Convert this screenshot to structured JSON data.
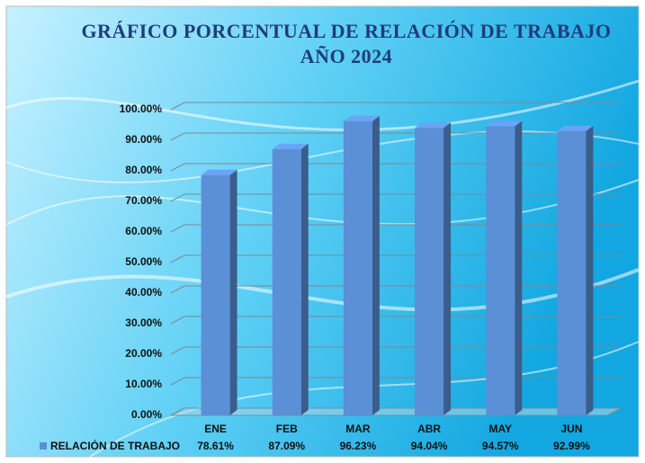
{
  "chart_data": {
    "type": "bar3d",
    "title": "GRÁFICO PORCENTUAL DE RELACIÓN DE TRABAJO",
    "subtitle": "AÑO 2024",
    "categories": [
      "ENE",
      "FEB",
      "MAR",
      "ABR",
      "MAY",
      "JUN"
    ],
    "series": [
      {
        "name": "RELACIÓN DE TRABAJO",
        "color": "#5b8fd6",
        "values": [
          78.61,
          87.09,
          96.23,
          94.04,
          94.57,
          92.99
        ],
        "value_labels": [
          "78.61%",
          "87.09%",
          "96.23%",
          "94.04%",
          "94.57%",
          "92.99%"
        ]
      }
    ],
    "ylim": [
      0,
      100
    ],
    "yticks": [
      {
        "value": 0,
        "label": "0.00%"
      },
      {
        "value": 10,
        "label": "10.00%"
      },
      {
        "value": 20,
        "label": "20.00%"
      },
      {
        "value": 30,
        "label": "30.00%"
      },
      {
        "value": 40,
        "label": "40.00%"
      },
      {
        "value": 50,
        "label": "50.00%"
      },
      {
        "value": 60,
        "label": "60.00%"
      },
      {
        "value": 70,
        "label": "70.00%"
      },
      {
        "value": 80,
        "label": "80.00%"
      },
      {
        "value": 90,
        "label": "90.00%"
      },
      {
        "value": 100,
        "label": "100.00%"
      }
    ],
    "grid": true
  }
}
